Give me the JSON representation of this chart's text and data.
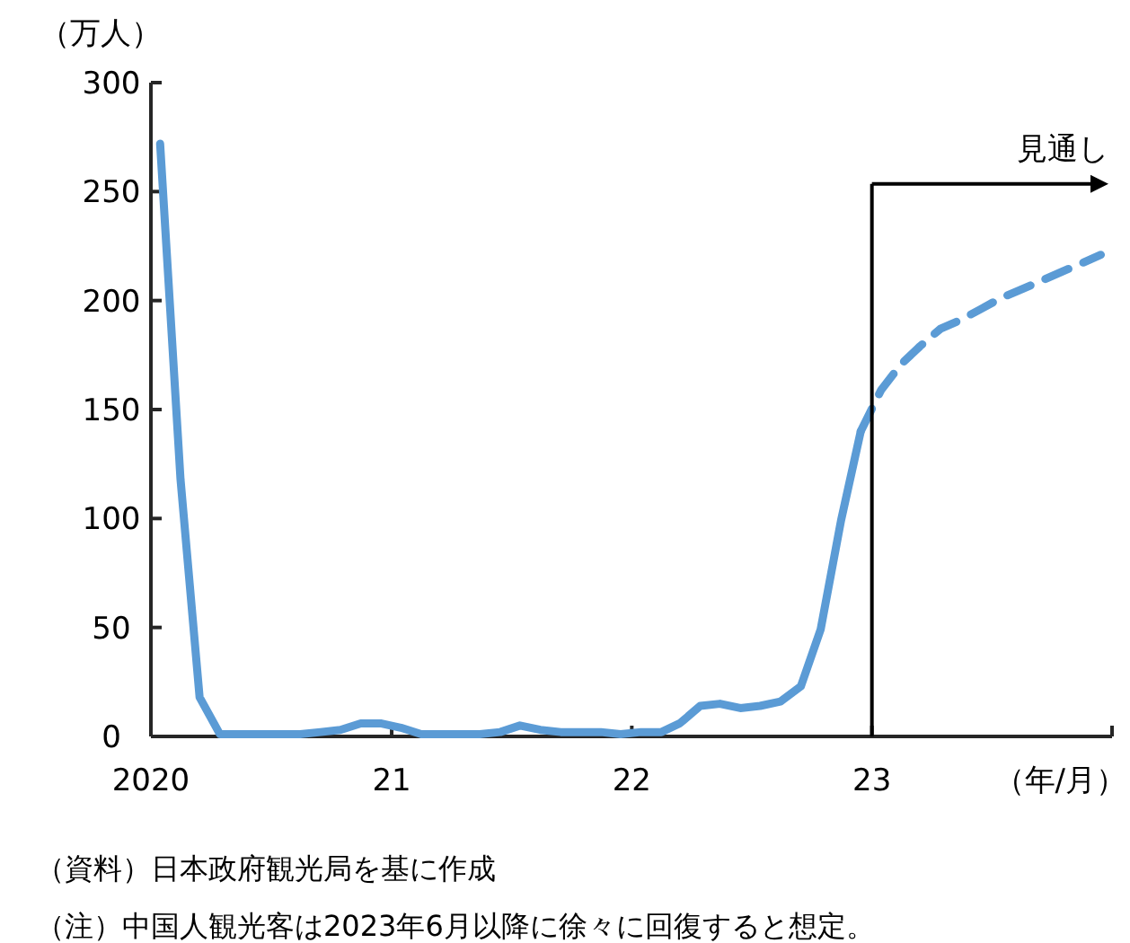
{
  "chart_data": {
    "type": "line",
    "ylabel": "（万人）",
    "xlabel": "（年/月）",
    "xlim": [
      "2020-01-01",
      "2024-01-01"
    ],
    "xticks": [
      {
        "value": "2020-01-01",
        "label": "2020"
      },
      {
        "value": "2021-01-01",
        "label": "21"
      },
      {
        "value": "2022-01-01",
        "label": "22"
      },
      {
        "value": "2023-01-01",
        "label": "23"
      },
      {
        "value": "2024-01-01",
        "label": null
      }
    ],
    "ylim": [
      0,
      300
    ],
    "yticks": [
      0,
      50,
      100,
      150,
      200,
      250,
      300
    ],
    "grid": false,
    "series": [
      {
        "color": "#5b9bd5",
        "line_style": "solid",
        "x": [
          "2020-01-15",
          "2020-02-15",
          "2020-03-15",
          "2020-04-15",
          "2020-05-15",
          "2020-06-15",
          "2020-07-15",
          "2020-08-15",
          "2020-09-15",
          "2020-10-15",
          "2020-11-15",
          "2020-12-15",
          "2021-01-15",
          "2021-02-15",
          "2021-03-15",
          "2021-04-15",
          "2021-05-15",
          "2021-06-15",
          "2021-07-15",
          "2021-08-15",
          "2021-09-15",
          "2021-10-15",
          "2021-11-15",
          "2021-12-15",
          "2022-01-15",
          "2022-02-15",
          "2022-03-15",
          "2022-04-15",
          "2022-05-15",
          "2022-06-15",
          "2022-07-15",
          "2022-08-15",
          "2022-09-15",
          "2022-10-15",
          "2022-11-15",
          "2022-12-15"
        ],
        "values": [
          272,
          118,
          18,
          1,
          1,
          1,
          1,
          1,
          2,
          3,
          6,
          6,
          4,
          1,
          1,
          1,
          1,
          2,
          5,
          3,
          2,
          2,
          2,
          1,
          2,
          2,
          6,
          14,
          15,
          13,
          14,
          16,
          23,
          49,
          99,
          140
        ]
      },
      {
        "color": "#5b9bd5",
        "line_style": "dashed",
        "x": [
          "2022-12-15",
          "2023-01-15",
          "2023-02-15",
          "2023-03-15",
          "2023-04-15",
          "2023-05-15",
          "2023-06-15",
          "2023-07-15",
          "2023-08-15",
          "2023-09-15",
          "2023-10-15",
          "2023-11-15",
          "2023-12-15"
        ],
        "values": [
          140,
          159,
          171,
          179,
          187,
          191,
          196,
          201,
          205,
          209,
          213,
          217,
          221
        ]
      }
    ],
    "ref_lines": [
      {
        "axis": "x",
        "value": "2023-01-01",
        "label": "見通し"
      }
    ],
    "annotations": [
      "（資料）日本政府観光局を基に作成",
      "（注）中国人観光客は2023年6月以降に徐々に回復すると想定。"
    ]
  }
}
